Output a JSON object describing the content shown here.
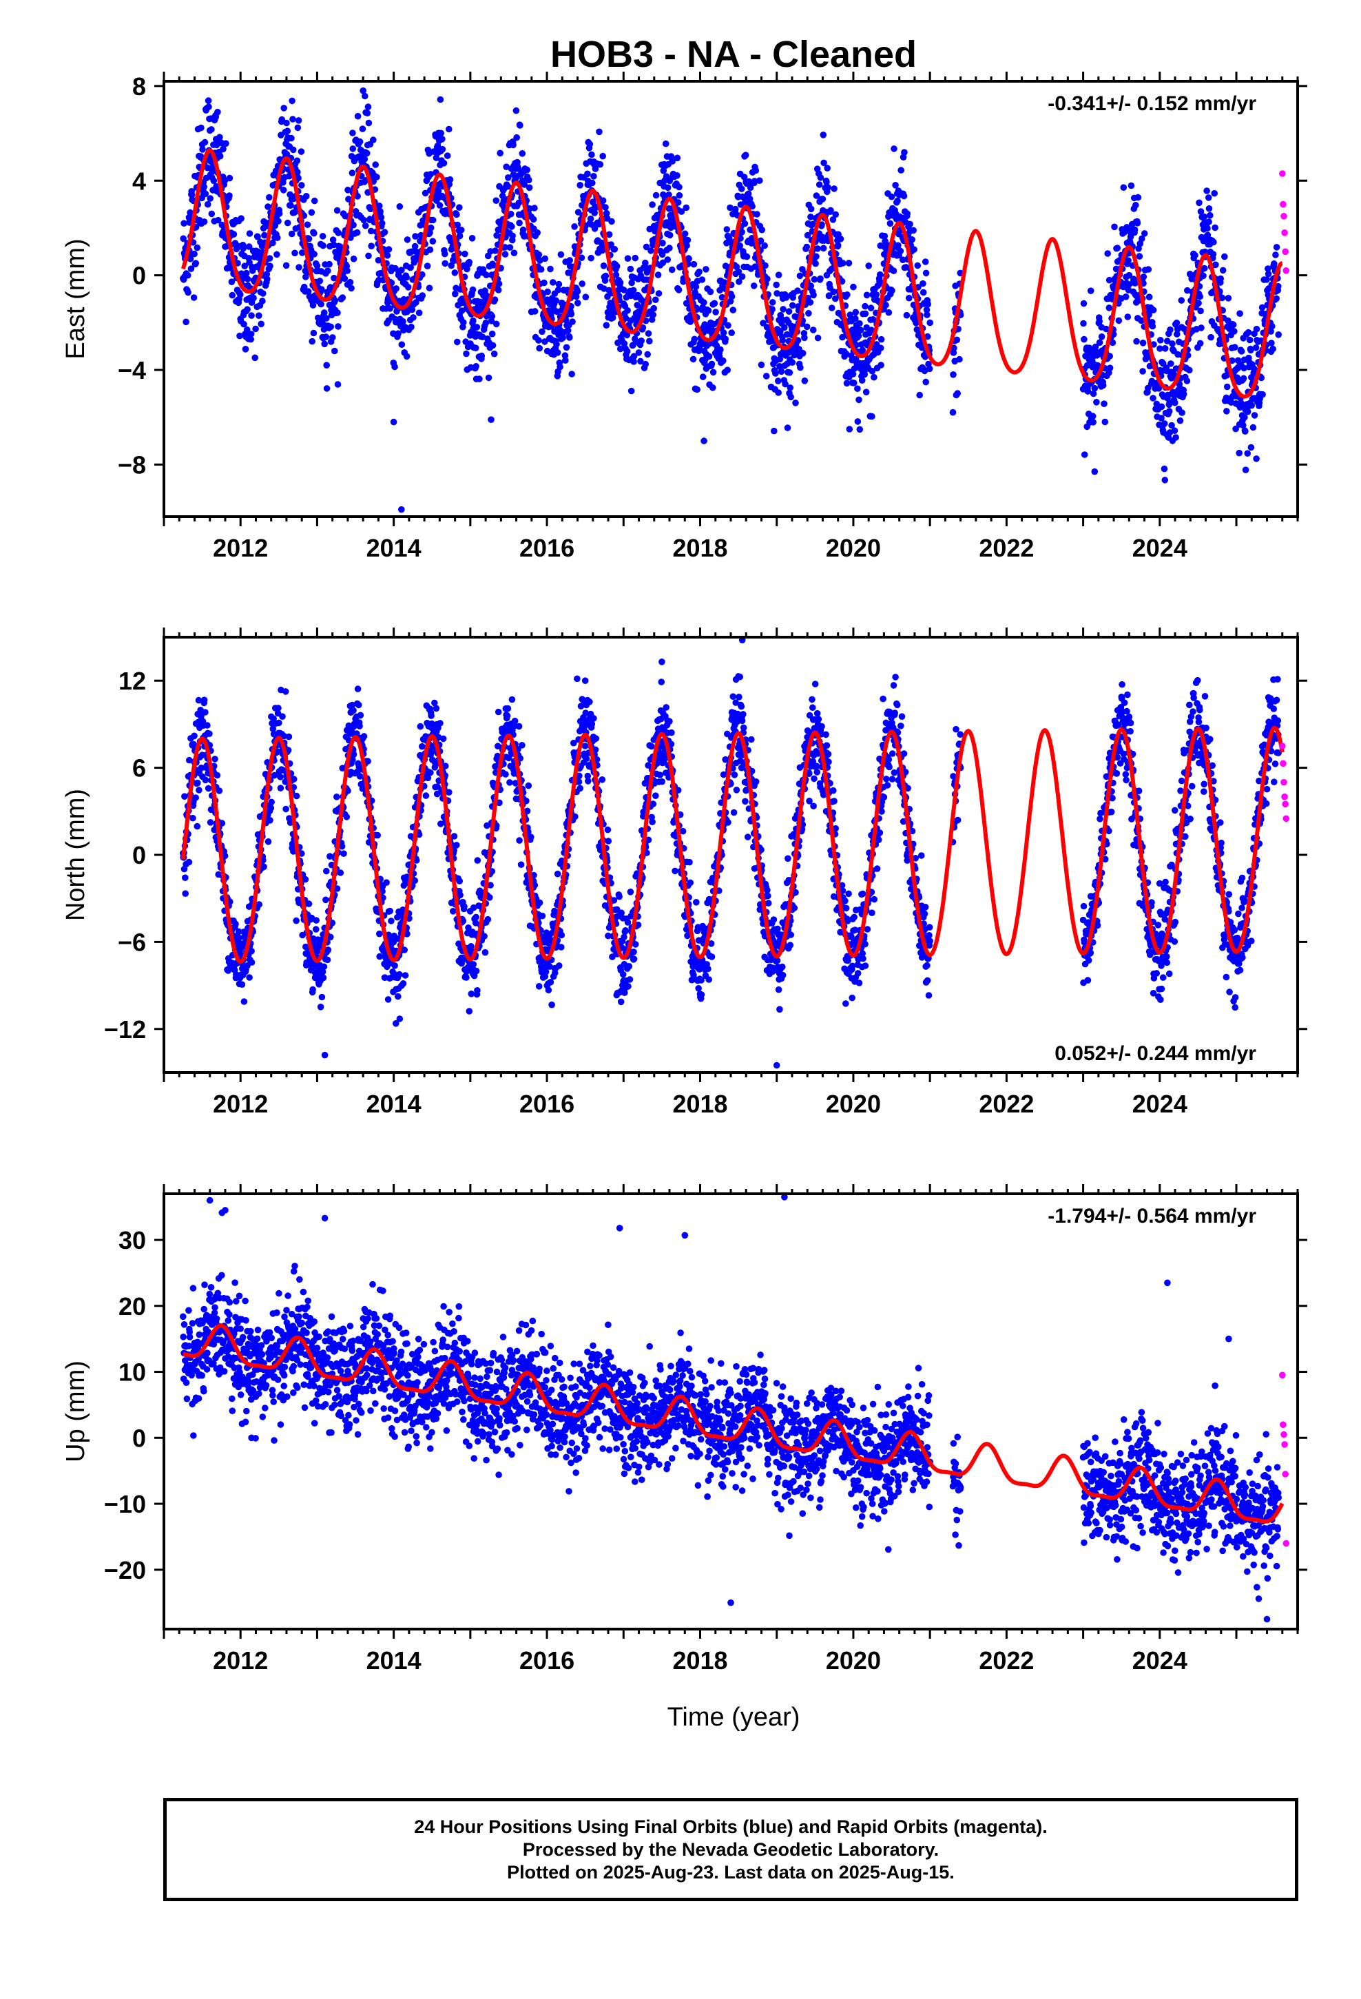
{
  "title": "HOB3  - NA - Cleaned",
  "xlabel": "Time (year)",
  "footer": {
    "line1": "24 Hour Positions Using Final Orbits (blue) and Rapid Orbits (magenta).",
    "line2": "Processed by the Nevada Geodetic Laboratory.",
    "line3": "Plotted on 2025-Aug-23. Last data on 2025-Aug-15."
  },
  "colors": {
    "final": "#0000ff",
    "rapid": "#ff00ff",
    "model": "#ff0000",
    "axis": "#000000"
  },
  "x_axis": {
    "range": [
      2011.0,
      2025.8
    ],
    "ticks": [
      2012,
      2014,
      2016,
      2018,
      2020,
      2022,
      2024
    ],
    "minor_step": 0.2
  },
  "chart_data": [
    {
      "type": "scatter",
      "component": "east",
      "ylabel": "East (mm)",
      "ylim": [
        -10.2,
        8.2
      ],
      "yticks": [
        -8,
        -4,
        0,
        4,
        8
      ],
      "rate_label": "-0.341+/- 0.152 mm/yr",
      "rate_position": "top-right",
      "model": {
        "name": "model fit",
        "rate": -0.341,
        "offset": 2.1,
        "annual_amplitude": 2.9,
        "annual_phase_peak": 0.6,
        "semiannual_amplitude": 0.4,
        "start": 2011.25,
        "end": 2025.6
      },
      "data_segments": [
        [
          2011.25,
          2021.0
        ],
        [
          2021.3,
          2021.4
        ],
        [
          2023.0,
          2025.55
        ]
      ],
      "scatter_sd": 1.3,
      "rapid_points": {
        "x": [
          2025.6,
          2025.61,
          2025.62,
          2025.63,
          2025.64,
          2025.65
        ],
        "y": [
          4.3,
          3.0,
          2.5,
          1.8,
          1.0,
          0.2
        ]
      },
      "outliers": {
        "x": [
          2014.1,
          2014.0,
          2018.05,
          2023.15,
          2011.7,
          2013.6
        ],
        "y": [
          -9.9,
          -6.2,
          -7.0,
          -8.3,
          6.9,
          7.8
        ]
      }
    },
    {
      "type": "scatter",
      "component": "north",
      "ylabel": "North (mm)",
      "ylim": [
        -15,
        15
      ],
      "yticks": [
        -12,
        -6,
        0,
        6,
        12
      ],
      "rate_label": "0.052+/- 0.244 mm/yr",
      "rate_position": "bottom-right",
      "model": {
        "name": "model fit",
        "rate": 0.052,
        "offset": 0.0,
        "annual_amplitude": 7.7,
        "annual_phase_peak": 0.5,
        "semiannual_amplitude": 0.3,
        "start": 2011.25,
        "end": 2025.6
      },
      "data_segments": [
        [
          2011.25,
          2021.0
        ],
        [
          2021.3,
          2021.4
        ],
        [
          2023.0,
          2025.55
        ]
      ],
      "scatter_sd": 1.6,
      "rapid_points": {
        "x": [
          2025.6,
          2025.61,
          2025.62,
          2025.63,
          2025.64,
          2025.65
        ],
        "y": [
          7.5,
          6.3,
          5.0,
          4.0,
          3.5,
          2.5
        ]
      },
      "outliers": {
        "x": [
          2018.55,
          2019.0,
          2013.1,
          2017.5,
          2016.5,
          2018.5
        ],
        "y": [
          14.8,
          -14.5,
          -13.8,
          13.3,
          12.0,
          12.3
        ]
      }
    },
    {
      "type": "scatter",
      "component": "up",
      "ylabel": "Up (mm)",
      "ylim": [
        -29,
        37
      ],
      "yticks": [
        -20,
        -10,
        0,
        10,
        20,
        30
      ],
      "rate_label": "-1.794+/- 0.564 mm/yr",
      "rate_position": "top-right",
      "model": {
        "name": "model fit",
        "rate": -1.794,
        "offset": 14.5,
        "annual_amplitude": 2.6,
        "annual_phase_peak": 0.75,
        "semiannual_amplitude": 0.8,
        "start": 2011.25,
        "end": 2025.6
      },
      "data_segments": [
        [
          2011.25,
          2021.0
        ],
        [
          2021.3,
          2021.4
        ],
        [
          2023.0,
          2025.55
        ]
      ],
      "scatter_sd": 4.0,
      "rapid_points": {
        "x": [
          2025.6,
          2025.61,
          2025.62,
          2025.63,
          2025.64,
          2025.65
        ],
        "y": [
          9.5,
          2.0,
          0.5,
          -1.0,
          -5.5,
          -16.0
        ]
      },
      "outliers": {
        "x": [
          2019.1,
          2016.95,
          2017.8,
          2013.1,
          2018.4,
          2024.1,
          2024.9,
          2025.4,
          2011.6,
          2011.8
        ],
        "y": [
          36.5,
          31.8,
          30.7,
          33.3,
          -25.0,
          23.5,
          15.0,
          -27.5,
          36.0,
          34.5
        ]
      }
    }
  ]
}
